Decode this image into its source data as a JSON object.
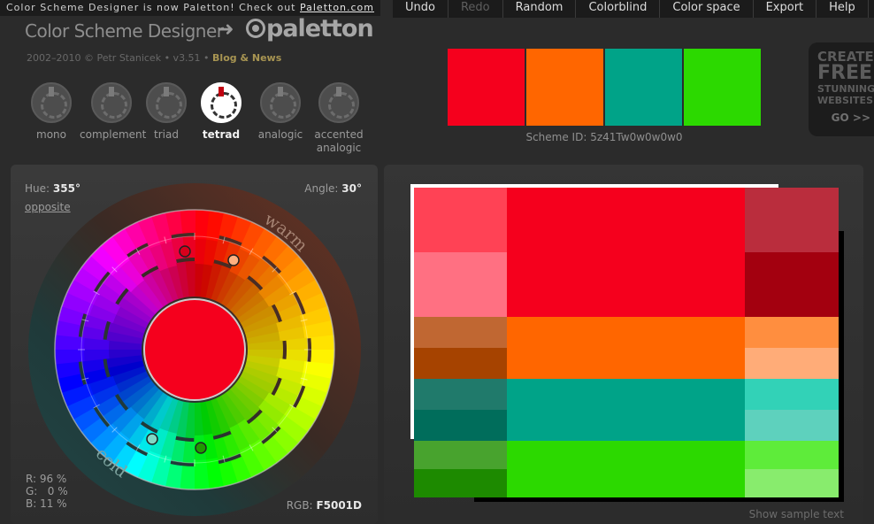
{
  "notice": {
    "text": "Color Scheme Designer is now Paletton! Check out ",
    "link": "Paletton.com"
  },
  "menu": [
    {
      "label": "Undo",
      "disabled": false
    },
    {
      "label": "Redo",
      "disabled": true
    },
    {
      "label": "Random",
      "disabled": false
    },
    {
      "label": "Colorblind",
      "disabled": false
    },
    {
      "label": "Color space",
      "disabled": false
    },
    {
      "label": "Export",
      "disabled": false
    },
    {
      "label": "Help",
      "disabled": false
    }
  ],
  "logo": {
    "old": "Color Scheme Designer",
    "arrow": "➜",
    "new": "paletton"
  },
  "copyright": {
    "text": "2002–2010 © Petr Stanicek • v3.51 • ",
    "blog": "Blog & News"
  },
  "modes": [
    {
      "label": "mono",
      "active": false
    },
    {
      "label": "complement",
      "active": false
    },
    {
      "label": "triad",
      "active": false
    },
    {
      "label": "tetrad",
      "active": true
    },
    {
      "label": "analogic",
      "active": false
    },
    {
      "label": "accented analogic",
      "active": false
    }
  ],
  "scheme": {
    "swatches": [
      "#F5001D",
      "#FF6600",
      "#00A388",
      "#2CD900"
    ],
    "id_label": "Scheme ID:",
    "id": "5z41Tw0w0w0w0"
  },
  "ad": {
    "l1": "CREATE",
    "l2": "FREE",
    "l3": "STUNNING",
    "l4": "WEBSITES",
    "go": "GO >>"
  },
  "wheel": {
    "hue_label": "Hue:",
    "hue_value": "355°",
    "angle_label": "Angle:",
    "angle_value": "30°",
    "opposite": "opposite",
    "warm": "warm",
    "cold": "cold",
    "center_color": "#F5001D",
    "rgb_lines": "R: 96 %\nG:   0 %\nB: 11 %",
    "rgb_label": "RGB:",
    "rgb_value": "F5001D"
  },
  "palette_rows": [
    {
      "left": [
        "#FF4255",
        "#FF7082"
      ],
      "main": "#F5001D",
      "right": [
        "#BA2D3D",
        "#A3000F"
      ]
    },
    {
      "left": [
        "#C06732",
        "#A64300"
      ],
      "main": "#FF6600",
      "right": [
        "#FF8E3F",
        "#FFAC78"
      ]
    },
    {
      "left": [
        "#207A6B",
        "#006D5B"
      ],
      "main": "#00A388",
      "right": [
        "#32D2B7",
        "#5ED1BD"
      ]
    },
    {
      "left": [
        "#48A32E",
        "#1D8A00"
      ],
      "main": "#2CD900",
      "right": [
        "#5EEC3A",
        "#88EC6D"
      ]
    }
  ],
  "sample_text": "Show sample text"
}
